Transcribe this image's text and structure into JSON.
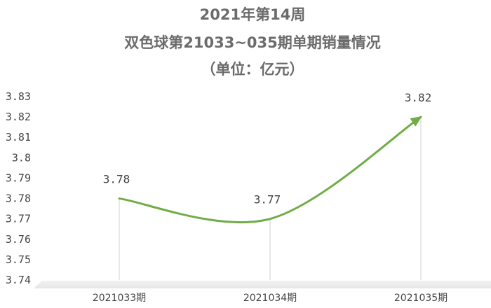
{
  "chart_data": {
    "type": "line",
    "title_lines": [
      "2021年第14周",
      "双色球第21033~035期单期销量情况",
      "（单位：亿元）"
    ],
    "categories": [
      "2021033期",
      "2021034期",
      "2021035期"
    ],
    "series": [
      {
        "values": [
          3.78,
          3.77,
          3.82
        ]
      }
    ],
    "data_labels": [
      "3.78",
      "3.77",
      "3.82"
    ],
    "y_ticks": [
      "3.74",
      "3.75",
      "3.76",
      "3.77",
      "3.78",
      "3.79",
      "3.8",
      "3.81",
      "3.82",
      "3.83"
    ],
    "ylim": [
      3.74,
      3.83
    ],
    "xlabel": "",
    "ylabel": "",
    "smooth": true,
    "grid": false,
    "drop_lines": true,
    "legend": "none",
    "colors": {
      "line": "#70ad47",
      "drop_line": "#d9d9d9",
      "floor": "#ececec",
      "title": "#6b6b6b"
    }
  }
}
